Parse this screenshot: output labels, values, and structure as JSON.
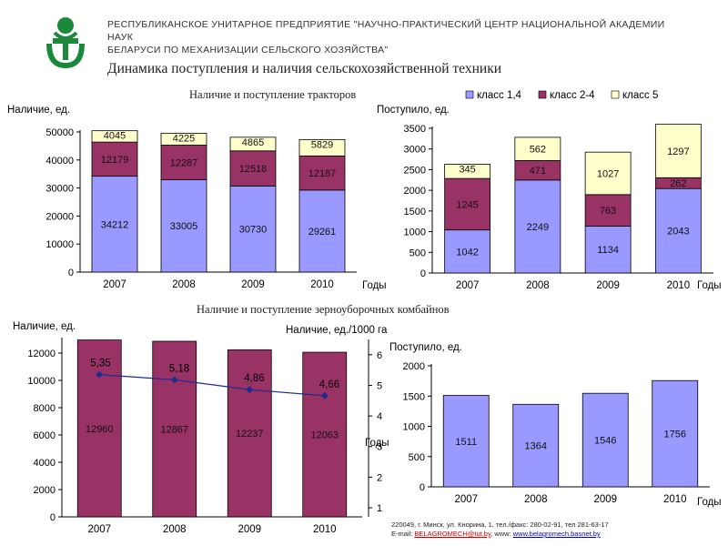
{
  "header": {
    "org_line1": "РЕСПУБЛИКАНСКОЕ УНИТАРНОЕ ПРЕДПРИЯТИЕ \"НАУЧНО-ПРАКТИЧЕСКИЙ ЦЕНТР НАЦИОНАЛЬНОЙ АКАДЕМИИ НАУК",
    "org_line2": "БЕЛАРУСИ ПО МЕХАНИЗАЦИИ СЕЛЬСКОГО ХОЗЯЙСТВА\"",
    "page_title": "Динамика поступления и наличия сельскохозяйственной техники"
  },
  "footer": {
    "address": "220049, г. Минск, ул. Кнорина, 1, тел./факс: 280-02-91, тел 281-63-17",
    "email_prefix": "E-mail: ",
    "email": "BELAGROMECH@tut.by",
    "www_prefix": ", www: ",
    "www": "www.belagromech.basnet.by"
  },
  "colors": {
    "blue": "#9999ff",
    "maroon": "#993366",
    "cream": "#ffffcc",
    "line": "#1f2c8f",
    "logo_green": "#1a8a3a"
  },
  "legend": [
    {
      "label": "класс 1,4",
      "color": "#9999ff"
    },
    {
      "label": "класс 2-4",
      "color": "#993366"
    },
    {
      "label": "класс 5",
      "color": "#ffffcc"
    }
  ],
  "section_titles": {
    "tractors": "Наличие и поступление тракторов",
    "combines": "Наличие и поступление зерноуборочных комбайнов"
  },
  "chart_data": [
    {
      "type": "bar",
      "stacked": true,
      "ylabel": "Наличие, ед.",
      "xlabel": "Годы",
      "categories": [
        "2007",
        "2008",
        "2009",
        "2010"
      ],
      "ylim": [
        0,
        50000
      ],
      "yticks": [
        0,
        10000,
        20000,
        30000,
        40000,
        50000
      ],
      "series": [
        {
          "name": "класс 1,4",
          "values": [
            34212,
            33005,
            30730,
            29261
          ]
        },
        {
          "name": "класс 2-4",
          "values": [
            12179,
            12287,
            12518,
            12187
          ]
        },
        {
          "name": "класс 5",
          "values": [
            4045,
            4225,
            4865,
            5829
          ]
        }
      ]
    },
    {
      "type": "bar",
      "stacked": true,
      "ylabel": "Поступило, ед.",
      "xlabel": "Годы",
      "categories": [
        "2007",
        "2008",
        "2009",
        "2010"
      ],
      "ylim": [
        0,
        3500
      ],
      "yticks": [
        0,
        500,
        1000,
        1500,
        2000,
        2500,
        3000,
        3500
      ],
      "series": [
        {
          "name": "класс 1,4",
          "values": [
            1042,
            2249,
            1134,
            2043
          ]
        },
        {
          "name": "класс 2-4",
          "values": [
            1245,
            471,
            763,
            262
          ]
        },
        {
          "name": "класс 5",
          "values": [
            345,
            562,
            1027,
            1297
          ]
        }
      ]
    },
    {
      "type": "bar",
      "ylabel": "Наличие, ед.",
      "y2label": "Наличие, ед./1000 га",
      "xlabel": "Годы",
      "categories": [
        "2007",
        "2008",
        "2009",
        "2010"
      ],
      "ylim": [
        0,
        13000
      ],
      "yticks": [
        0,
        2000,
        4000,
        6000,
        8000,
        10000,
        12000
      ],
      "y2lim": [
        1,
        6.5
      ],
      "y2ticks": [
        1,
        2,
        3,
        4,
        5,
        6
      ],
      "series": [
        {
          "values": [
            12960,
            12867,
            12237,
            12063
          ]
        },
        {
          "type": "line",
          "axis": "right",
          "values": [
            5.35,
            5.18,
            4.86,
            4.66
          ],
          "labels": [
            "5,35",
            "5,18",
            "4,86",
            "4,66"
          ]
        }
      ]
    },
    {
      "type": "bar",
      "ylabel": "Поступило, ед.",
      "xlabel": "Годы",
      "categories": [
        "2007",
        "2008",
        "2009",
        "2010"
      ],
      "ylim": [
        0,
        2000
      ],
      "yticks": [
        0,
        500,
        1000,
        1500,
        2000
      ],
      "series": [
        {
          "values": [
            1511,
            1364,
            1546,
            1756
          ]
        }
      ]
    }
  ]
}
